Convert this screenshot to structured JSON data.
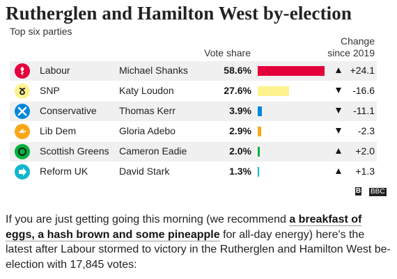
{
  "title": "Rutherglen and Hamilton West by-election",
  "subtitle": "Top six parties",
  "headers": {
    "vote_share": "Vote share",
    "change": "Change",
    "change_since": "since 2019"
  },
  "chart_data": {
    "type": "bar",
    "categories": [
      "Labour",
      "SNP",
      "Conservative",
      "Lib Dem",
      "Scottish Greens",
      "Reform UK"
    ],
    "candidates": [
      "Michael Shanks",
      "Katy Loudon",
      "Thomas Kerr",
      "Gloria Adebo",
      "Cameron Eadie",
      "David Stark"
    ],
    "values": [
      58.6,
      27.6,
      3.9,
      2.9,
      2.0,
      1.3
    ],
    "value_labels": [
      "58.6%",
      "27.6%",
      "3.9%",
      "2.9%",
      "2.0%",
      "1.3%"
    ],
    "changes": [
      24.1,
      -16.6,
      -11.1,
      -2.3,
      2.0,
      1.3
    ],
    "change_labels": [
      "+24.1",
      "-16.6",
      "-11.1",
      "-2.3",
      "+2.0",
      "+1.3"
    ],
    "colors": [
      "#e4003b",
      "#fdf38e",
      "#0087dc",
      "#faa61a",
      "#00b140",
      "#12b6cf"
    ],
    "xlim": [
      0,
      60
    ]
  },
  "rows": [
    {
      "party": "Labour",
      "candidate": "Michael Shanks",
      "share": "58.6%",
      "change": "+24.1",
      "icon": "labour-rose-icon"
    },
    {
      "party": "SNP",
      "candidate": "Katy Loudon",
      "share": "27.6%",
      "change": "-16.6",
      "icon": "snp-logo-icon"
    },
    {
      "party": "Conservative",
      "candidate": "Thomas Kerr",
      "share": "3.9%",
      "change": "-11.1",
      "icon": "conservative-cross-icon"
    },
    {
      "party": "Lib Dem",
      "candidate": "Gloria Adebo",
      "share": "2.9%",
      "change": "-2.3",
      "icon": "lib-dem-bird-icon"
    },
    {
      "party": "Scottish Greens",
      "candidate": "Cameron Eadie",
      "share": "2.0%",
      "change": "+2.0",
      "icon": "scottish-greens-icon"
    },
    {
      "party": "Reform UK",
      "candidate": "David Stark",
      "share": "1.3%",
      "change": "+1.3",
      "icon": "reform-uk-arrow-icon"
    }
  ],
  "source_logo": "BBC",
  "paragraph": {
    "part1": "If you are just getting going this morning (we recommend ",
    "link": "a breakfast of eggs, a hash brown and some pineapple",
    "part2": " for all-day energy) here's the latest after Labour stormed to victory in the Rutherglen and Hamilton West be-election with 17,845 votes:"
  }
}
